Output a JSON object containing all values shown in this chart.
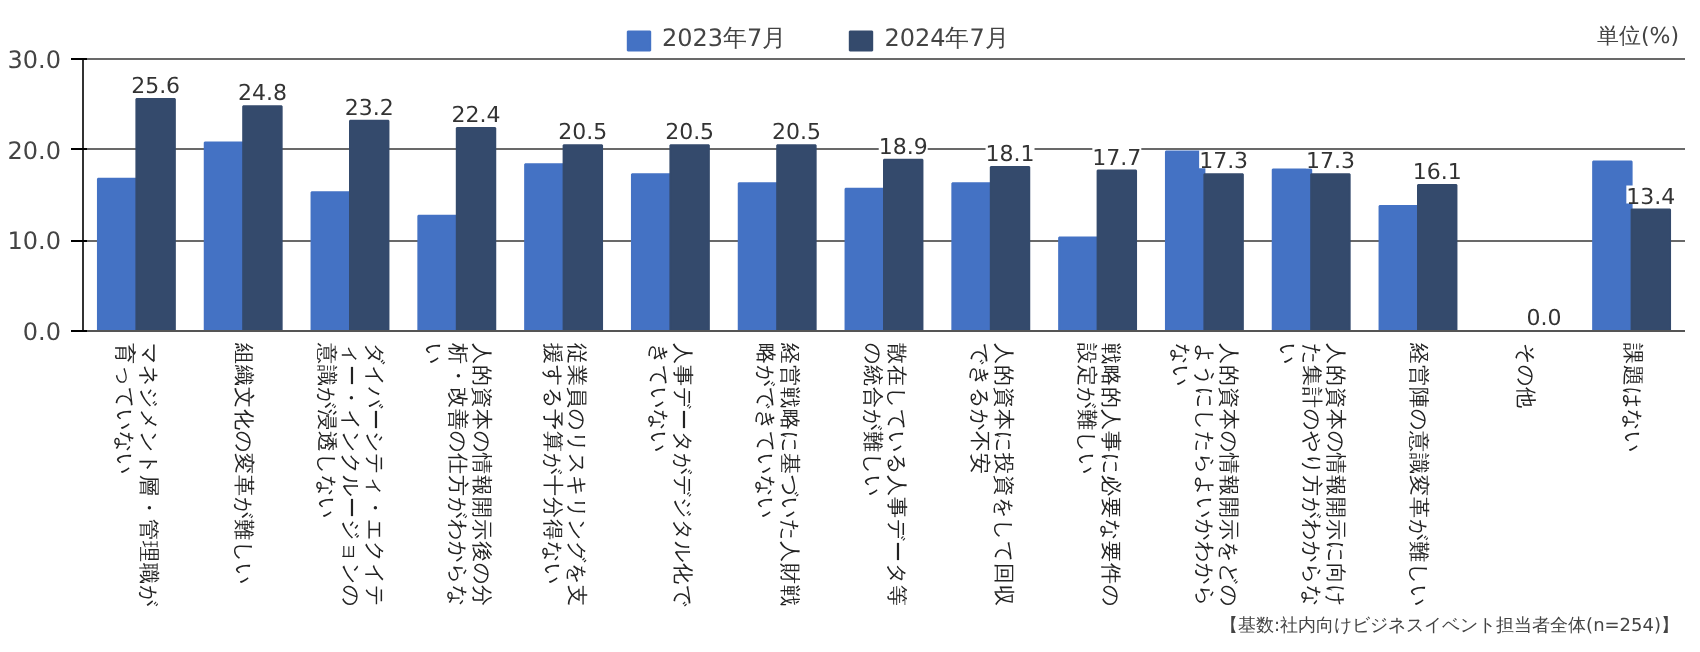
{
  "chart_data": {
    "type": "bar",
    "categories": [
      "マネジメント層・管理職が育っていない",
      "組織文化の変革が難しい",
      "ダイバーシティ・エクイティー・インクルージョンの意識が浸透しない",
      "人的資本の情報開示後の分析・改善の仕方がわからない",
      "従業員のリスキリングを支援する予算が十分得ない",
      "人事データがデジタル化できていない",
      "経営戦略に基づいた人財戦略ができていない",
      "散在している人事データ等の統合が難しい",
      "人的資本に投資をして回収できるか不安",
      "戦略的人事に必要な要件の設定が難しい",
      "人的資本の情報開示をどのようにしたらよいかわからない",
      "人的資本の情報開示に向けた集計のやり方がわからない",
      "経営陣の意識変革が難しい",
      "その他",
      "課題はない"
    ],
    "series": [
      {
        "name": "2023年7月",
        "color": "#4472c4",
        "values": [
          16.8,
          20.8,
          15.3,
          12.7,
          18.4,
          17.3,
          16.3,
          15.7,
          16.3,
          10.3,
          19.8,
          17.8,
          13.8,
          null,
          18.7
        ]
      },
      {
        "name": "2024年7月",
        "color": "#344a6c",
        "values": [
          25.6,
          24.8,
          23.2,
          22.4,
          20.5,
          20.5,
          20.5,
          18.9,
          18.1,
          17.7,
          17.3,
          17.3,
          16.1,
          0.0,
          13.4
        ],
        "value_labels": [
          "25.6",
          "24.8",
          "23.2",
          "22.4",
          "20.5",
          "20.5",
          "20.5",
          "18.9",
          "18.1",
          "17.7",
          "17.3",
          "17.3",
          "16.1",
          "0.0",
          "13.4"
        ]
      }
    ],
    "ylim": [
      0,
      30
    ],
    "yticks": [
      {
        "value": 0,
        "label": "0.0"
      },
      {
        "value": 10,
        "label": "10.0"
      },
      {
        "value": 20,
        "label": "20.0"
      },
      {
        "value": 30,
        "label": "30.0"
      }
    ],
    "grid": "y",
    "legend": "top",
    "annotations": [
      "単位(%)",
      "【基数:社内向けビジネスイベント担当者全体(n=254)】"
    ]
  }
}
